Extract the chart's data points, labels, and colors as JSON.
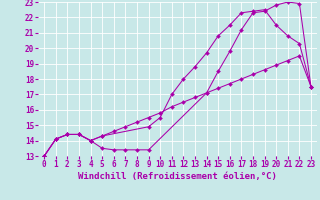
{
  "xlabel": "Windchill (Refroidissement éolien,°C)",
  "bg_color": "#c8e8e8",
  "line_color": "#aa00aa",
  "xlim": [
    -0.5,
    23.5
  ],
  "ylim": [
    13,
    23
  ],
  "xticks": [
    0,
    1,
    2,
    3,
    4,
    5,
    6,
    7,
    8,
    9,
    10,
    11,
    12,
    13,
    14,
    15,
    16,
    17,
    18,
    19,
    20,
    21,
    22,
    23
  ],
  "yticks": [
    13,
    14,
    15,
    16,
    17,
    18,
    19,
    20,
    21,
    22,
    23
  ],
  "line1_x": [
    0,
    1,
    2,
    3,
    4,
    5,
    6,
    7,
    8,
    9,
    14,
    15,
    16,
    17,
    18,
    19,
    20,
    21,
    22,
    23
  ],
  "line1_y": [
    13,
    14.1,
    14.4,
    14.4,
    14.0,
    13.5,
    13.4,
    13.4,
    13.4,
    13.4,
    17.1,
    18.5,
    19.8,
    21.2,
    22.3,
    22.4,
    22.8,
    23.0,
    22.9,
    17.5
  ],
  "line2_x": [
    0,
    1,
    2,
    3,
    4,
    5,
    9,
    10,
    11,
    12,
    13,
    14,
    15,
    16,
    17,
    18,
    19,
    20,
    21,
    22,
    23
  ],
  "line2_y": [
    13,
    14.1,
    14.4,
    14.4,
    14.0,
    14.3,
    14.9,
    15.5,
    17.0,
    18.0,
    18.8,
    19.7,
    20.8,
    21.5,
    22.3,
    22.4,
    22.5,
    21.5,
    20.8,
    20.3,
    17.5
  ],
  "line3_x": [
    0,
    1,
    2,
    3,
    4,
    5,
    6,
    7,
    8,
    9,
    10,
    11,
    12,
    13,
    14,
    15,
    16,
    17,
    18,
    19,
    20,
    21,
    22,
    23
  ],
  "line3_y": [
    13,
    14.1,
    14.4,
    14.4,
    14.0,
    14.3,
    14.6,
    14.9,
    15.2,
    15.5,
    15.8,
    16.2,
    16.5,
    16.8,
    17.1,
    17.4,
    17.7,
    18.0,
    18.3,
    18.6,
    18.9,
    19.2,
    19.5,
    17.5
  ],
  "grid_color": "#ffffff",
  "xlabel_fontsize": 6.5,
  "tick_fontsize": 5.5,
  "marker": "D",
  "marker_size": 2.0,
  "linewidth": 0.75
}
